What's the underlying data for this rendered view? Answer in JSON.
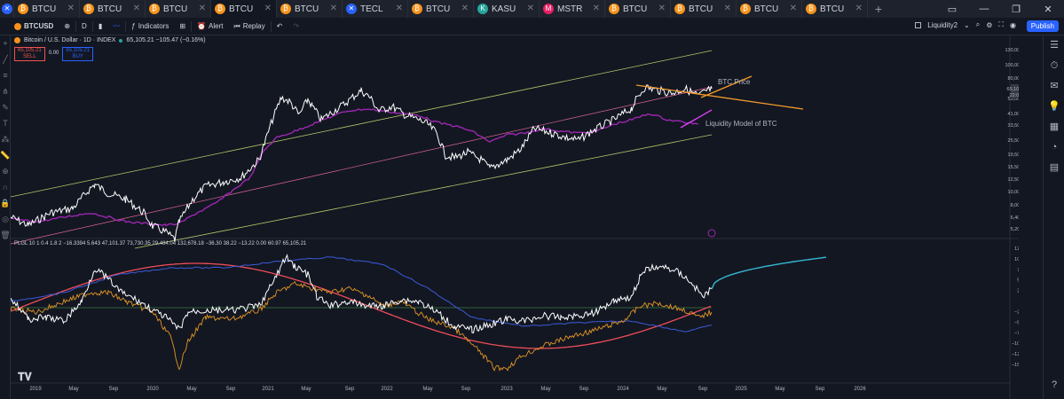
{
  "tabs": [
    {
      "label": "BTCU",
      "icon": "₿",
      "active": false
    },
    {
      "label": "BTCU",
      "icon": "₿",
      "active": false
    },
    {
      "label": "BTCU",
      "icon": "₿",
      "active": false
    },
    {
      "label": "BTCU",
      "icon": "₿",
      "active": true
    },
    {
      "label": "BTCU",
      "icon": "₿",
      "active": false
    },
    {
      "label": "TECL",
      "icon": "✕",
      "active": false
    },
    {
      "label": "BTCU",
      "icon": "₿",
      "active": false
    },
    {
      "label": "KASU",
      "icon": "K",
      "active": false
    },
    {
      "label": "MSTR",
      "icon": "M",
      "active": false
    },
    {
      "label": "BTCU",
      "icon": "₿",
      "active": false
    },
    {
      "label": "BTCU",
      "icon": "₿",
      "active": false
    },
    {
      "label": "BTCU",
      "icon": "₿",
      "active": false
    },
    {
      "label": "BTCU",
      "icon": "₿",
      "active": false
    }
  ],
  "toolbar": {
    "symbol": "BTCUSD",
    "interval": "D",
    "indicators": "Indicators",
    "alert": "Alert",
    "replay": "Replay",
    "layout": "Liquidity2",
    "publish": "Publish"
  },
  "legend": {
    "title": "Bitcoin / U.S. Dollar · 1D · INDEX",
    "quote": "65,105.21  −105.47 (−0.16%)",
    "sell_price": "65,105.21",
    "sell_label": "SELL",
    "spread": "0.00",
    "buy_price": "65,105.21",
    "buy_label": "BUY"
  },
  "indicator_legend": "PLGL 10 1 0.4 1.8 2 −16.3394 5.643  47,101.37  73,730.35  29,484.04  132,678.18  −36.30  38.22  −13.22  0.00  60.97  65,105.21",
  "annotations": {
    "btc_price": "BTC Price",
    "liquidity_model": "Liquidity Model of BTC"
  },
  "price_axis": {
    "currency": "USD",
    "labels": [
      "130,000.00",
      "100,000.00",
      "80,000.00",
      "53,000.00",
      "41,000.00",
      "33,500.00",
      "25,500.00",
      "19,500.00",
      "15,500.00",
      "12,500.00",
      "10,000.00",
      "8,000.00",
      "6,400.00",
      "5,200.00"
    ],
    "current_price": "65,105.21",
    "countdown": "22:05:52"
  },
  "osc_axis": {
    "labels": [
      "125.00",
      "100.00",
      "75.00",
      "50.00",
      "25.00",
      "0.00",
      "−25.00",
      "−50.00",
      "−75.00",
      "−100.00",
      "−125.00",
      "−150.00"
    ]
  },
  "time_axis": {
    "labels": [
      "2019",
      "May",
      "Sep",
      "2020",
      "May",
      "Sep",
      "2021",
      "May",
      "Sep",
      "2022",
      "May",
      "Sep",
      "2023",
      "May",
      "Sep",
      "2024",
      "May",
      "Sep",
      "2025",
      "May",
      "Sep",
      "2026"
    ]
  },
  "colors": {
    "price_line": "#ffffff",
    "liquidity_line": "#9c27b0",
    "upper_channel": "#b5c76a",
    "mid_channel": "#e0679a",
    "lower_channel": "#b5c76a",
    "orange_trend": "#f59b2a",
    "osc_orange": "#e39624",
    "osc_blue": "#3b5bd9",
    "osc_red": "#ef4d5a",
    "osc_forecast": "#35b6d1"
  }
}
